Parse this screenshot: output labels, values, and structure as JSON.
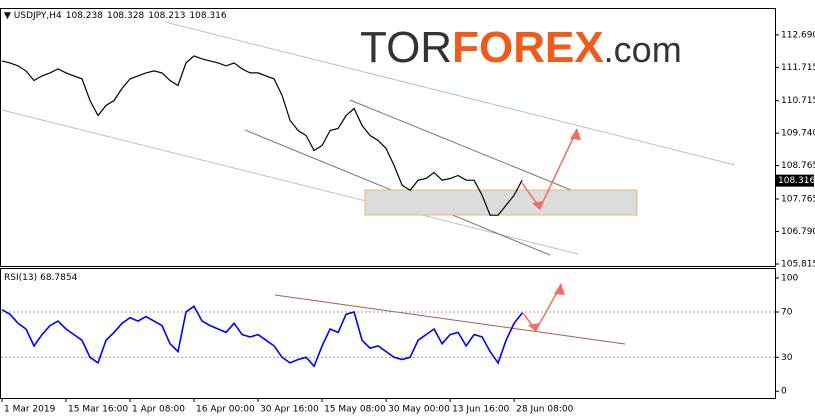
{
  "logo": {
    "prefix": "TOR",
    "main": "FOREX",
    "suffix": ".com"
  },
  "chart_data": [
    {
      "type": "line",
      "title": "USDJPY,H4",
      "ohlc": [
        108.238,
        108.328,
        108.213,
        108.316
      ],
      "series": [
        {
          "color": "#000000",
          "values": [
            111.91,
            111.85,
            111.76,
            111.61,
            111.32,
            111.46,
            111.55,
            111.67,
            111.55,
            111.46,
            111.37,
            110.72,
            110.27,
            110.57,
            110.72,
            111.08,
            111.37,
            111.46,
            111.55,
            111.61,
            111.55,
            111.32,
            111.17,
            111.85,
            112.06,
            111.97,
            111.91,
            111.85,
            111.76,
            111.85,
            111.67,
            111.55,
            111.55,
            111.46,
            111.37,
            110.87,
            110.12,
            109.82,
            109.67,
            109.22,
            109.37,
            109.82,
            109.88,
            110.27,
            110.48,
            109.97,
            109.67,
            109.52,
            109.28,
            108.77,
            108.18,
            108.03,
            108.33,
            108.38,
            108.56,
            108.33,
            108.38,
            108.47,
            108.33,
            108.33,
            107.88,
            107.28,
            107.28,
            107.58,
            107.88,
            108.33
          ]
        }
      ],
      "xlim": [
        0,
        96.6
      ],
      "ylim": [
        105.755,
        113.467
      ],
      "yticks": [
        {
          "value": 112.69,
          "label": "112.690"
        },
        111.715,
        110.715,
        {
          "value": 109.74,
          "label": "109.740"
        },
        108.765,
        107.765,
        {
          "value": 106.79,
          "label": "106.790"
        },
        105.815
      ]
    },
    {
      "type": "line",
      "title": "RSI(13)",
      "current": 68.7854,
      "series": [
        {
          "color": "#0000ff",
          "values": [
            72,
            68,
            60,
            55,
            40,
            50,
            58,
            62,
            55,
            50,
            45,
            30,
            25,
            45,
            52,
            60,
            65,
            62,
            66,
            62,
            58,
            42,
            35,
            70,
            75,
            62,
            58,
            55,
            52,
            60,
            50,
            48,
            50,
            45,
            40,
            30,
            25,
            28,
            30,
            22,
            40,
            55,
            52,
            68,
            70,
            45,
            38,
            40,
            35,
            30,
            28,
            30,
            45,
            50,
            55,
            42,
            50,
            52,
            40,
            50,
            48,
            35,
            25,
            45,
            60,
            69
          ]
        }
      ],
      "xlim": [
        0,
        96.6
      ],
      "ylim": [
        -6,
        108
      ],
      "yticks": [
        100,
        70,
        30,
        0
      ],
      "grid_dashed": [
        70,
        30
      ],
      "xticks": [
        {
          "value": 0,
          "label": "1 Mar 2019"
        },
        {
          "value": 8,
          "label": "15 Mar 16:00"
        },
        {
          "value": 16,
          "label": "1 Apr 08:00"
        },
        {
          "value": 24,
          "label": "16 Apr 00:00"
        },
        {
          "value": 32,
          "label": "30 Apr 16:00"
        },
        {
          "value": 40,
          "label": "15 May 08:00"
        },
        {
          "value": 48,
          "label": "30 May 00:00"
        },
        {
          "value": 56,
          "label": "13 Jun 16:00"
        },
        {
          "value": 64,
          "label": "28 Jun 08:00"
        }
      ]
    }
  ]
}
